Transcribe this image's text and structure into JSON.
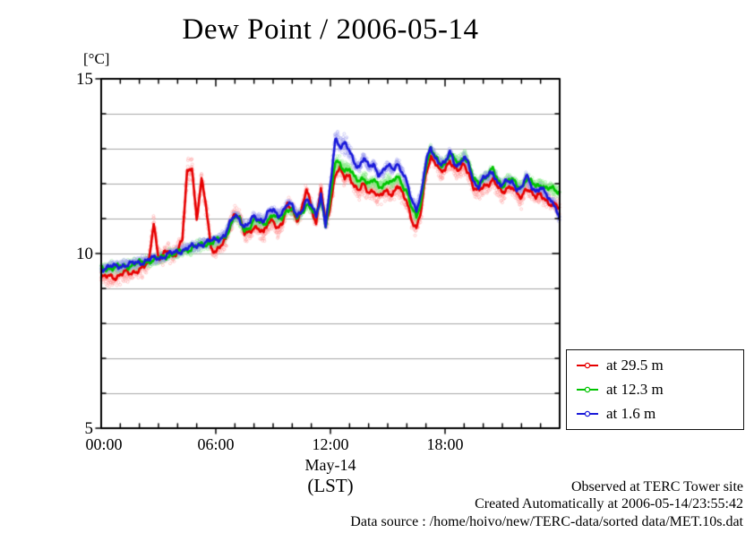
{
  "title": "Dew Point / 2006-05-14",
  "axes": {
    "y_unit_label": "[°C]",
    "y_ticks": [
      {
        "value": 15,
        "label": "15"
      },
      {
        "value": 10,
        "label": "10"
      },
      {
        "value": 5,
        "label": "5"
      }
    ],
    "x_ticks": [
      {
        "hour": 0,
        "label": "00:00"
      },
      {
        "hour": 6,
        "label": "06:00"
      },
      {
        "hour": 12,
        "label": "12:00"
      },
      {
        "hour": 18,
        "label": "18:00"
      }
    ],
    "x_date_label": "May-14",
    "x_timezone_label": "(LST)",
    "y_min": 5,
    "y_max": 15,
    "x_min_hour": 0,
    "x_max_hour": 24,
    "minor_y_step": 1,
    "minor_x_step_hours": 1,
    "grid": "horizontal-only",
    "grid_color": "#a6a6a6"
  },
  "legend": {
    "entries": [
      {
        "label": "at 29.5 m",
        "color": "#e60000"
      },
      {
        "label": "at 12.3 m",
        "color": "#00c400"
      },
      {
        "label": "at 1.6 m",
        "color": "#1a1ad9"
      }
    ]
  },
  "footer": {
    "observed": "Observed at TERC Tower site",
    "created": "Created Automatically at 2006-05-14/23:55:42",
    "datasource": "Data source : /home/hoivo/new/TERC-data/sorted  data/MET.10s.dat"
  },
  "chart_data": {
    "type": "line",
    "title": "Dew Point / 2006-05-14",
    "xlabel": "May-14 (LST)",
    "ylabel": "[°C]",
    "xlim": [
      0,
      24
    ],
    "ylim": [
      5,
      15
    ],
    "legend_position": "outside-right-bottom",
    "x_start_hour": 0,
    "x_step_hours": 0.25,
    "series": [
      {
        "name": "at 29.5 m",
        "color": "#e60000",
        "scatter_color": "#ff9a9a",
        "scatter_halfwidth": 0.3,
        "band_boost": {
          "center": 4.85,
          "width": 0.45,
          "gain": 0.35
        },
        "values": [
          9.3,
          9.32,
          9.35,
          9.33,
          9.4,
          9.45,
          9.42,
          9.5,
          9.55,
          9.6,
          9.75,
          10.95,
          9.85,
          9.95,
          10.05,
          9.95,
          10.1,
          10.4,
          12.3,
          12.5,
          11.0,
          12.1,
          11.3,
          10.15,
          10.1,
          10.2,
          10.35,
          10.8,
          11.2,
          11.0,
          10.55,
          10.6,
          10.8,
          10.7,
          10.55,
          10.9,
          11.0,
          10.7,
          10.85,
          11.4,
          11.3,
          10.95,
          11.2,
          11.85,
          11.4,
          10.85,
          11.85,
          10.8,
          11.4,
          12.3,
          12.4,
          12.15,
          12.25,
          11.95,
          11.8,
          11.95,
          11.75,
          11.85,
          11.6,
          11.7,
          11.8,
          11.7,
          11.95,
          11.7,
          11.5,
          11.0,
          10.7,
          11.2,
          12.3,
          12.8,
          12.6,
          12.3,
          12.4,
          12.7,
          12.45,
          12.35,
          12.55,
          12.3,
          11.9,
          11.75,
          11.9,
          12.0,
          12.15,
          11.9,
          11.7,
          11.9,
          11.95,
          11.7,
          11.55,
          11.9,
          11.8,
          11.6,
          11.65,
          11.55,
          11.45,
          11.4,
          11.25
        ]
      },
      {
        "name": "at 12.3 m",
        "color": "#00c400",
        "scatter_color": "#86e886",
        "scatter_halfwidth": 0.2,
        "band_boost": {
          "center": 12.5,
          "width": 0.45,
          "gain": 0.3
        },
        "values": [
          9.55,
          9.57,
          9.6,
          9.6,
          9.62,
          9.65,
          9.65,
          9.7,
          9.72,
          9.75,
          9.8,
          9.82,
          9.85,
          9.9,
          9.95,
          9.98,
          10.02,
          10.08,
          10.12,
          10.15,
          10.2,
          10.25,
          10.28,
          10.32,
          10.35,
          10.42,
          10.5,
          10.8,
          11.05,
          10.95,
          10.7,
          10.75,
          10.95,
          10.9,
          10.85,
          11.0,
          11.1,
          10.95,
          11.05,
          11.3,
          11.25,
          11.0,
          11.15,
          11.45,
          11.3,
          11.0,
          11.6,
          10.85,
          11.6,
          12.6,
          12.55,
          12.4,
          12.45,
          12.15,
          12.05,
          12.2,
          12.0,
          12.1,
          11.9,
          11.95,
          12.1,
          12.0,
          12.2,
          12.0,
          11.8,
          11.3,
          11.0,
          11.5,
          12.55,
          12.95,
          12.75,
          12.55,
          12.6,
          12.85,
          12.65,
          12.6,
          12.8,
          12.55,
          12.1,
          12.0,
          12.15,
          12.25,
          12.4,
          12.1,
          11.95,
          12.1,
          12.1,
          11.95,
          11.9,
          12.15,
          12.05,
          11.9,
          12.0,
          11.9,
          11.85,
          11.8,
          11.75
        ]
      },
      {
        "name": "at 1.6 m",
        "color": "#1a1ad9",
        "scatter_color": "#9a9aee",
        "scatter_halfwidth": 0.17,
        "band_boost": {
          "center": 12.5,
          "width": 0.45,
          "gain": 1.3
        },
        "values": [
          9.58,
          9.6,
          9.62,
          9.62,
          9.65,
          9.68,
          9.68,
          9.72,
          9.75,
          9.78,
          9.82,
          9.85,
          9.88,
          9.92,
          9.97,
          10.0,
          10.05,
          10.1,
          10.15,
          10.18,
          10.22,
          10.28,
          10.32,
          10.35,
          10.4,
          10.45,
          10.55,
          10.85,
          11.1,
          11.0,
          10.75,
          10.85,
          11.05,
          11.0,
          10.95,
          11.15,
          11.25,
          11.1,
          11.2,
          11.4,
          11.35,
          11.1,
          11.25,
          11.5,
          11.35,
          11.1,
          11.7,
          10.8,
          11.9,
          13.3,
          13.1,
          13.15,
          12.9,
          12.6,
          12.5,
          12.75,
          12.45,
          12.55,
          12.3,
          12.35,
          12.5,
          12.4,
          12.6,
          12.35,
          12.0,
          11.5,
          11.3,
          11.7,
          12.6,
          13.0,
          12.75,
          12.6,
          12.55,
          12.9,
          12.6,
          12.55,
          12.75,
          12.5,
          12.05,
          11.95,
          12.15,
          12.2,
          12.35,
          12.05,
          11.95,
          12.05,
          12.05,
          11.9,
          11.85,
          12.2,
          11.95,
          11.8,
          11.9,
          11.7,
          11.5,
          11.45,
          10.95
        ]
      }
    ]
  }
}
